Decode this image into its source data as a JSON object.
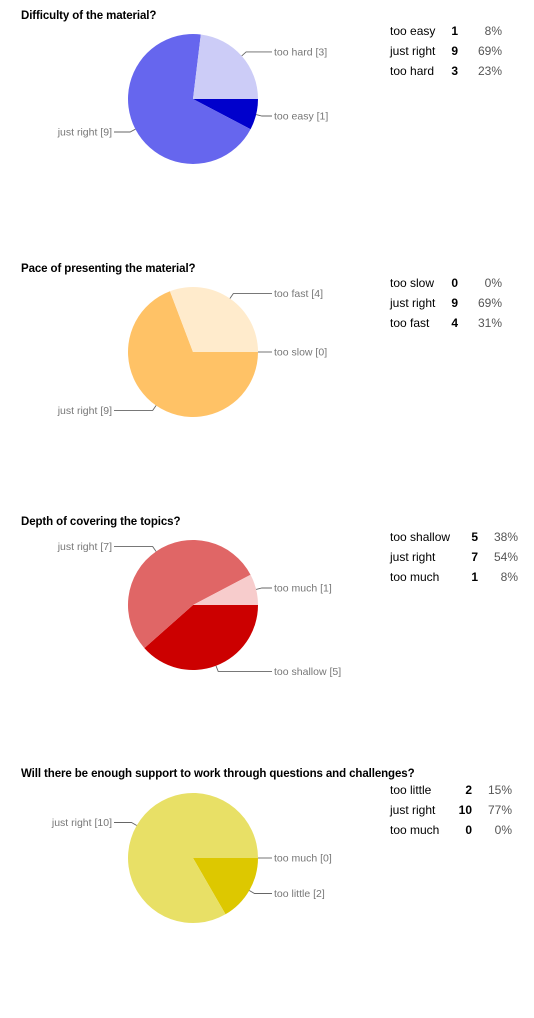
{
  "chart_data": [
    {
      "type": "pie",
      "title": "Difficulty of the material?",
      "slices": [
        {
          "label": "too easy",
          "count": 1,
          "percent": "8%",
          "pie_label": "too easy [1]",
          "color": "#0000cc"
        },
        {
          "label": "just right",
          "count": 9,
          "percent": "69%",
          "pie_label": "just right [9]",
          "color": "#6666ee"
        },
        {
          "label": "too hard",
          "count": 3,
          "percent": "23%",
          "pie_label": "too hard [3]",
          "color": "#ccccf7"
        }
      ]
    },
    {
      "type": "pie",
      "title": "Pace of presenting the material?",
      "slices": [
        {
          "label": "too slow",
          "count": 0,
          "percent": "0%",
          "pie_label": "too slow [0]",
          "color": "#ff9900"
        },
        {
          "label": "just right",
          "count": 9,
          "percent": "69%",
          "pie_label": "just right [9]",
          "color": "#ffc266"
        },
        {
          "label": "too fast",
          "count": 4,
          "percent": "31%",
          "pie_label": "too fast [4]",
          "color": "#ffebcc"
        }
      ]
    },
    {
      "type": "pie",
      "title": "Depth of covering the topics?",
      "slices": [
        {
          "label": "too shallow",
          "count": 5,
          "percent": "38%",
          "pie_label": "too shallow [5]",
          "color": "#cc0000"
        },
        {
          "label": "just right",
          "count": 7,
          "percent": "54%",
          "pie_label": "just right [7]",
          "color": "#e06666"
        },
        {
          "label": "too much",
          "count": 1,
          "percent": "8%",
          "pie_label": "too much [1]",
          "color": "#f7cccc"
        }
      ]
    },
    {
      "type": "pie",
      "title": "Will there be enough support to work through questions and challenges?",
      "slices": [
        {
          "label": "too little",
          "count": 2,
          "percent": "15%",
          "pie_label": "too little [2]",
          "color": "#ddc800"
        },
        {
          "label": "just right",
          "count": 10,
          "percent": "77%",
          "pie_label": "just right [10]",
          "color": "#e8e066"
        },
        {
          "label": "too much",
          "count": 0,
          "percent": "0%",
          "pie_label": "too much [0]",
          "color": "#f7f2cc"
        }
      ]
    }
  ]
}
